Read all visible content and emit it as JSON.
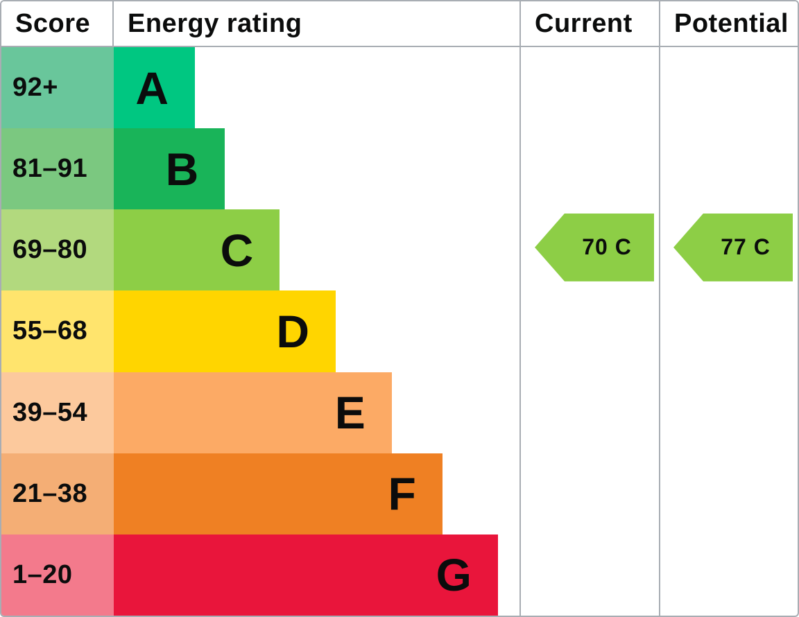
{
  "header": {
    "score": "Score",
    "energy_rating": "Energy rating",
    "current": "Current",
    "potential": "Potential"
  },
  "chart_data": {
    "type": "bar",
    "title": "EPC energy efficiency rating chart",
    "categories": [
      "A",
      "B",
      "C",
      "D",
      "E",
      "F",
      "G"
    ],
    "bands": [
      {
        "letter": "A",
        "score": "92+",
        "bar_color": "#00c781",
        "score_color": "#69c69b",
        "width_pct": 20.0
      },
      {
        "letter": "B",
        "score": "81–91",
        "bar_color": "#19b459",
        "score_color": "#7bc880",
        "width_pct": 27.4
      },
      {
        "letter": "C",
        "score": "69–80",
        "bar_color": "#8dce46",
        "score_color": "#b2d97e",
        "width_pct": 40.9
      },
      {
        "letter": "D",
        "score": "55–68",
        "bar_color": "#ffd500",
        "score_color": "#ffe46d",
        "width_pct": 54.7
      },
      {
        "letter": "E",
        "score": "39–54",
        "bar_color": "#fcaa65",
        "score_color": "#fcc99d",
        "width_pct": 68.5
      },
      {
        "letter": "F",
        "score": "21–38",
        "bar_color": "#ef8023",
        "score_color": "#f4ae75",
        "width_pct": 81.0
      },
      {
        "letter": "G",
        "score": "1–20",
        "bar_color": "#e9153b",
        "score_color": "#f37a8c",
        "width_pct": 94.7
      }
    ],
    "current": {
      "value": 70,
      "band": "C",
      "label": "70 C",
      "arrow_color": "#8dce46"
    },
    "potential": {
      "value": 77,
      "band": "C",
      "label": "77 C",
      "arrow_color": "#8dce46"
    },
    "border_color": "#a8adb3",
    "legend_position": "none",
    "grid": false
  }
}
